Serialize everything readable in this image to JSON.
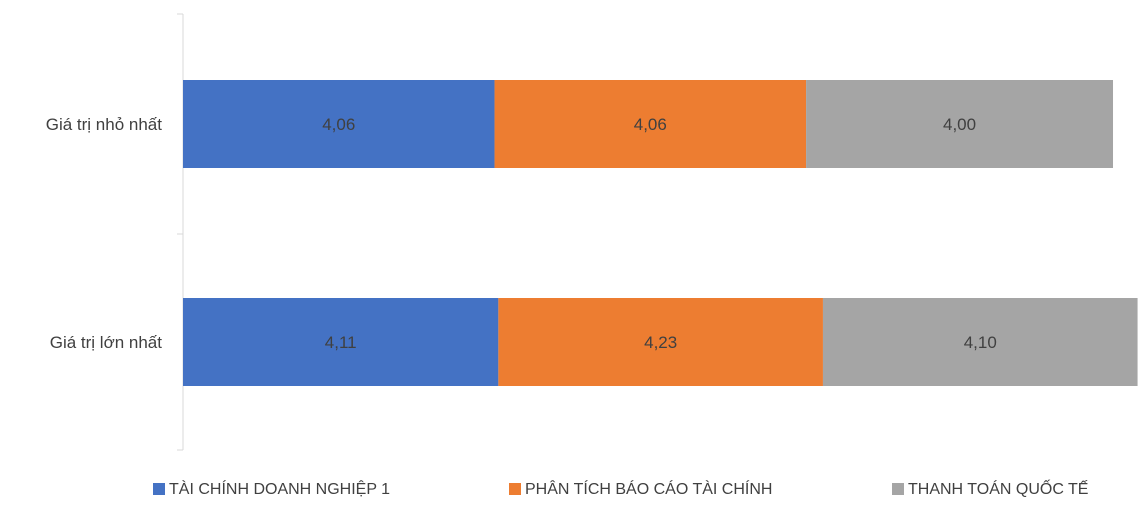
{
  "chart_data": {
    "type": "bar",
    "orientation": "horizontal",
    "stacked": true,
    "categories": [
      "Giá trị nhỏ nhất",
      "Giá trị lớn nhất"
    ],
    "series": [
      {
        "name": "TÀI CHÍNH DOANH NGHIỆP 1",
        "color": "#4472C4",
        "values": [
          4.06,
          4.11
        ],
        "labels": [
          "4,06",
          "4,11"
        ]
      },
      {
        "name": "PHÂN TÍCH BÁO CÁO TÀI CHÍNH",
        "color": "#ED7D31",
        "values": [
          4.06,
          4.23
        ],
        "labels": [
          "4,06",
          "4,23"
        ]
      },
      {
        "name": "THANH TOÁN QUỐC TẾ",
        "color": "#A5A5A5",
        "values": [
          4.0,
          4.1
        ],
        "labels": [
          "4,00",
          "4,10"
        ]
      }
    ],
    "xlim": [
      0,
      12.55
    ],
    "grid": false,
    "legend": "bottom"
  }
}
